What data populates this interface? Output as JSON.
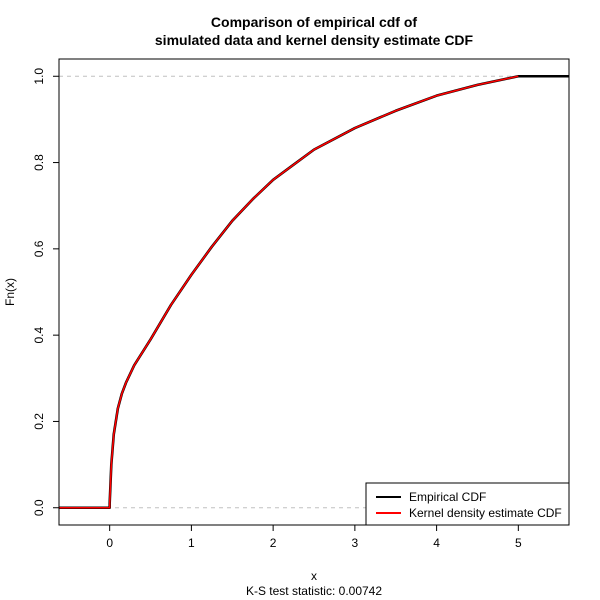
{
  "chart_data": {
    "type": "line",
    "title": "Comparison of empirical cdf of",
    "subtitle": "simulated data and kernel density estimate CDF",
    "xlabel": "x",
    "ylabel": "Fn(x)",
    "caption": "K-S test statistic: 0.00742",
    "xlim": [
      -0.62,
      5.62
    ],
    "ylim": [
      -0.04,
      1.04
    ],
    "x_ticks": [
      0,
      1,
      2,
      3,
      4,
      5
    ],
    "y_ticks": [
      0.0,
      0.2,
      0.4,
      0.6,
      0.8,
      1.0
    ],
    "x_tick_labels": [
      "0",
      "1",
      "2",
      "3",
      "4",
      "5"
    ],
    "y_tick_labels": [
      "0.0",
      "0.2",
      "0.4",
      "0.6",
      "0.8",
      "1.0"
    ],
    "reference_lines_y": [
      0,
      1
    ],
    "legend_position": "bottom-right",
    "series": [
      {
        "name": "Empirical CDF",
        "color": "#000000",
        "x": [
          -0.62,
          0,
          0,
          0.02,
          0.05,
          0.1,
          0.15,
          0.2,
          0.3,
          0.5,
          0.75,
          1.0,
          1.25,
          1.5,
          1.75,
          2.0,
          2.25,
          2.5,
          3.0,
          3.5,
          4.0,
          4.5,
          5.0,
          5.62
        ],
        "y": [
          0,
          0,
          0.01,
          0.1,
          0.17,
          0.23,
          0.265,
          0.29,
          0.33,
          0.39,
          0.47,
          0.54,
          0.605,
          0.665,
          0.715,
          0.76,
          0.795,
          0.83,
          0.88,
          0.92,
          0.955,
          0.98,
          1.0,
          1.0
        ]
      },
      {
        "name": "Kernel density estimate CDF",
        "color": "#ff0000",
        "x": [
          -0.62,
          0,
          0,
          0.02,
          0.05,
          0.1,
          0.15,
          0.2,
          0.3,
          0.5,
          0.75,
          1.0,
          1.25,
          1.5,
          1.75,
          2.0,
          2.25,
          2.5,
          3.0,
          3.5,
          4.0,
          4.5,
          5.0
        ],
        "y": [
          0,
          0,
          0.01,
          0.1,
          0.17,
          0.23,
          0.265,
          0.29,
          0.33,
          0.39,
          0.47,
          0.54,
          0.605,
          0.665,
          0.715,
          0.76,
          0.795,
          0.83,
          0.88,
          0.92,
          0.955,
          0.98,
          1.0
        ]
      }
    ]
  }
}
